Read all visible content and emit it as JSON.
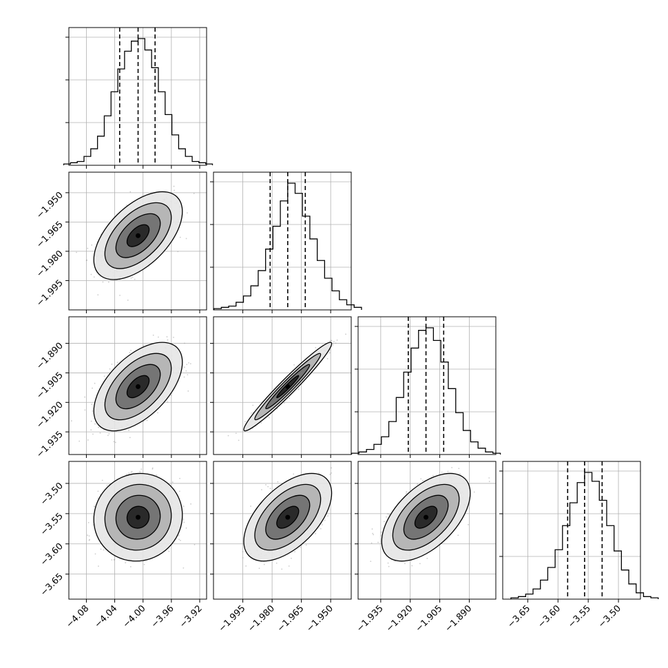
{
  "chart_data": {
    "type": "corner",
    "style": {
      "grid": true,
      "axis_color": "#000000",
      "grid_color": "#b0b0b0",
      "scatter_color": "#999999",
      "contour_color": "#000000",
      "density_colormap": [
        "#ffffff",
        "#000000"
      ]
    },
    "parameters": [
      {
        "label": "",
        "xlim": [
          -4.095,
          -3.92
        ],
        "ticks": [
          -4.08,
          -4.04,
          -4.0,
          -3.96,
          -3.92
        ],
        "tick_labels": [
          "−4.08",
          "−4.04",
          "−4.00",
          "−3.96",
          "−3.92"
        ],
        "quantiles": [
          -4.033,
          -4.007,
          -3.983
        ],
        "median": -4.007,
        "sigma": 0.025
      },
      {
        "label": "",
        "xlim": [
          -2.0065,
          -1.943
        ],
        "ticks": [
          -1.995,
          -1.98,
          -1.965,
          -1.95
        ],
        "tick_labels": [
          "−1.995",
          "−1.980",
          "−1.965",
          "−1.950"
        ],
        "quantiles": [
          -1.981,
          -1.972,
          -1.963
        ],
        "median": -1.972,
        "sigma": 0.009
      },
      {
        "label": "",
        "xlim": [
          -1.943,
          -1.88
        ],
        "ticks": [
          -1.935,
          -1.92,
          -1.905,
          -1.89
        ],
        "tick_labels": [
          "−1.935",
          "−1.920",
          "−1.905",
          "−1.890"
        ],
        "quantiles": [
          -1.921,
          -1.912,
          -1.903
        ],
        "median": -1.912,
        "sigma": 0.009
      },
      {
        "label": "",
        "xlim": [
          -3.68,
          -3.475
        ],
        "ticks": [
          -3.65,
          -3.6,
          -3.55,
          -3.5
        ],
        "tick_labels": [
          "−3.65",
          "−3.60",
          "−3.55",
          "−3.50"
        ],
        "quantiles": [
          -3.584,
          -3.556,
          -3.527
        ],
        "median": -3.556,
        "sigma": 0.029
      }
    ],
    "histograms": [
      [
        1,
        2,
        3,
        7,
        13,
        23,
        39,
        58,
        76,
        90,
        98,
        100,
        91,
        77,
        58,
        40,
        24,
        13,
        7,
        3,
        2,
        1
      ],
      [
        1,
        2,
        3,
        6,
        11,
        19,
        31,
        48,
        66,
        86,
        100,
        92,
        74,
        56,
        39,
        25,
        15,
        8,
        4,
        2
      ],
      [
        1,
        2,
        4,
        8,
        14,
        26,
        45,
        65,
        84,
        98,
        100,
        90,
        73,
        52,
        33,
        19,
        10,
        5,
        2,
        1
      ],
      [
        1,
        2,
        4,
        8,
        15,
        25,
        39,
        58,
        76,
        92,
        100,
        93,
        78,
        58,
        38,
        23,
        12,
        5,
        2,
        1
      ]
    ],
    "correlations": [
      [
        1.0,
        0.55,
        0.55,
        0.05
      ],
      [
        0.55,
        1.0,
        0.97,
        0.55
      ],
      [
        0.55,
        0.97,
        1.0,
        0.55
      ],
      [
        0.05,
        0.55,
        0.55,
        1.0
      ]
    ],
    "contour_levels_sigma": [
      0.5,
      1.0,
      1.5,
      2.0
    ]
  }
}
